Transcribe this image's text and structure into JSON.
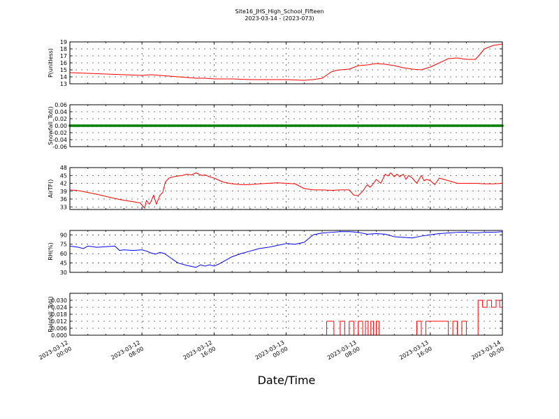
{
  "chart_data": {
    "type": "line",
    "title": "Site16_JHS_High_School_Fifteen",
    "subtitle": "2023-03-14 - (2023-073)",
    "xlabel": "Date/Time",
    "x_tick_labels": [
      [
        "2023-03-12",
        "00:00"
      ],
      [
        "2023-03-12",
        "08:00"
      ],
      [
        "2023-03-12",
        "16:00"
      ],
      [
        "2023-03-13",
        "00:00"
      ],
      [
        "2023-03-13",
        "08:00"
      ],
      [
        "2023-03-13",
        "16:00"
      ],
      [
        "2023-03-14",
        "00:00"
      ]
    ],
    "x_range_hours": [
      0,
      48
    ],
    "grid": true,
    "panels": [
      {
        "ylabel": "P(unitless)",
        "color": "#ff0000",
        "ylim": [
          13,
          19
        ],
        "yticks": [
          13,
          14,
          15,
          16,
          17,
          18,
          19
        ],
        "tick_decimals": 0,
        "step": false,
        "x": [
          0,
          2,
          4,
          6,
          8,
          9,
          10,
          12,
          14,
          15,
          16,
          18,
          20,
          22,
          24,
          26,
          27,
          28,
          29,
          29.5,
          30,
          31,
          32,
          33,
          34,
          35,
          36,
          37,
          38,
          39,
          40,
          41,
          42,
          43,
          44,
          45,
          45.5,
          46,
          47,
          48
        ],
        "values": [
          14.6,
          14.5,
          14.4,
          14.3,
          14.2,
          14.3,
          14.2,
          14.0,
          13.8,
          13.8,
          13.7,
          13.7,
          13.6,
          13.6,
          13.6,
          13.5,
          13.6,
          13.8,
          14.7,
          14.9,
          15.0,
          15.1,
          15.6,
          15.7,
          15.9,
          15.8,
          15.6,
          15.3,
          15.1,
          15.0,
          15.4,
          16.0,
          16.6,
          16.7,
          16.5,
          16.5,
          17.2,
          18.0,
          18.5,
          18.7
        ]
      },
      {
        "ylabel": "Snowfall_Tot()",
        "color": "#008000",
        "ylim": [
          -0.06,
          0.06
        ],
        "yticks": [
          -0.06,
          -0.04,
          -0.02,
          0.0,
          0.02,
          0.04,
          0.06
        ],
        "tick_decimals": 2,
        "step": false,
        "markers": true,
        "x": [
          0,
          48
        ],
        "values": [
          0.0,
          0.0
        ]
      },
      {
        "ylabel": "AirTF()",
        "color": "#ff0000",
        "ylim": [
          32,
          48
        ],
        "yticks": [
          33,
          36,
          39,
          42,
          45,
          48
        ],
        "tick_decimals": 0,
        "step": false,
        "x": [
          0,
          1,
          2,
          3,
          4,
          5,
          6,
          7,
          7.8,
          8.3,
          8.5,
          8.8,
          9.0,
          9.3,
          9.6,
          10.0,
          10.3,
          10.6,
          11.0,
          11.5,
          12,
          12.5,
          13,
          13.5,
          14,
          14.3,
          14.6,
          15,
          15.5,
          16,
          17,
          18,
          19,
          20,
          21,
          22,
          23,
          24,
          25,
          26,
          27,
          28,
          29,
          30,
          31,
          31.5,
          32,
          32.5,
          33,
          33.3,
          33.6,
          34,
          34.5,
          35,
          35.3,
          35.6,
          36,
          36.3,
          36.6,
          37,
          37.3,
          37.6,
          38,
          38.5,
          39,
          39.3,
          39.6,
          40,
          40.5,
          41,
          41.5,
          42,
          43,
          44,
          45,
          46,
          47,
          48
        ],
        "values": [
          39.5,
          39.2,
          38.5,
          37.8,
          37.0,
          36.2,
          35.5,
          35.0,
          34.5,
          32.5,
          35.5,
          34.0,
          35.0,
          37.5,
          34.0,
          37.5,
          38.5,
          42.5,
          44.0,
          44.5,
          44.8,
          45.0,
          45.5,
          45.2,
          46.0,
          45.5,
          45.0,
          45.2,
          44.5,
          44.0,
          42.5,
          41.8,
          41.5,
          41.5,
          41.8,
          42.0,
          42.2,
          42.0,
          41.8,
          40.0,
          39.5,
          39.5,
          39.3,
          39.5,
          39.5,
          37.5,
          37.3,
          39.0,
          41.5,
          40.5,
          41.5,
          43.5,
          42.0,
          45.5,
          44.8,
          46.0,
          44.5,
          45.5,
          44.5,
          45.5,
          43.5,
          45.0,
          44.0,
          42.0,
          45.0,
          43.0,
          43.5,
          43.0,
          41.5,
          44.0,
          43.5,
          43.0,
          42.0,
          42.0,
          42.0,
          41.8,
          41.8,
          42.0
        ]
      },
      {
        "ylabel": "RH(%)",
        "color": "#0000ff",
        "ylim": [
          30,
          97
        ],
        "yticks": [
          30,
          45,
          60,
          75,
          90
        ],
        "tick_decimals": 0,
        "step": false,
        "x": [
          0,
          1,
          1.5,
          2,
          3,
          4,
          5,
          5.5,
          6,
          7,
          8,
          8.5,
          9,
          9.5,
          10,
          10.5,
          11,
          12,
          13,
          14,
          14.5,
          15,
          15.5,
          16,
          16.5,
          17,
          18,
          19,
          20,
          21,
          22,
          23,
          24,
          25,
          26,
          27,
          28,
          29,
          30,
          31,
          32,
          33,
          34,
          35,
          36,
          37,
          38,
          39,
          40,
          41,
          42,
          43,
          44,
          45,
          46,
          47,
          48
        ],
        "values": [
          72,
          70,
          68,
          72,
          70,
          71,
          72,
          65,
          66,
          65,
          66,
          64,
          61,
          59,
          62,
          60,
          55,
          45,
          41,
          38,
          42,
          40,
          42,
          40,
          43,
          47,
          55,
          60,
          64,
          68,
          70,
          73,
          76,
          75,
          78,
          90,
          93,
          94,
          95,
          95,
          94,
          91,
          92,
          91,
          87,
          86,
          85,
          88,
          90,
          92,
          93,
          94,
          94,
          93,
          94,
          94,
          95
        ]
      },
      {
        "ylabel": "Rainfall_Tot()",
        "color": "#ff0000",
        "ylim": [
          0,
          0.036
        ],
        "yticks": [
          0.0,
          0.006,
          0.012,
          0.018,
          0.024,
          0.03
        ],
        "tick_decimals": 3,
        "step": true,
        "x": [
          0,
          28.5,
          29.3,
          30.0,
          30.5,
          31.0,
          31.5,
          32.0,
          32.5,
          32.8,
          33.1,
          33.4,
          33.7,
          34.0,
          34.3,
          34.6,
          38.5,
          39.0,
          39.5,
          40.5,
          41.0,
          42.0,
          42.5,
          43.0,
          43.5,
          44.0,
          44.5,
          45.3,
          45.8,
          46.3,
          46.8,
          47.3,
          47.7
        ],
        "values": [
          0,
          0.012,
          0,
          0.012,
          0,
          0.012,
          0,
          0.012,
          0,
          0.012,
          0,
          0.012,
          0,
          0.012,
          0,
          0,
          0.012,
          0,
          0.012,
          0.012,
          0.012,
          0,
          0.012,
          0,
          0.012,
          0,
          0,
          0.03,
          0.024,
          0.03,
          0.024,
          0.03,
          0.024
        ]
      }
    ]
  }
}
